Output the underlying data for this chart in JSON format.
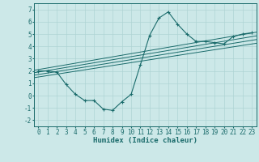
{
  "title": "",
  "xlabel": "Humidex (Indice chaleur)",
  "ylabel": "",
  "bg_color": "#cce8e8",
  "line_color": "#1a6b6b",
  "xlim": [
    -0.5,
    23.5
  ],
  "ylim": [
    -2.5,
    7.5
  ],
  "xticks": [
    0,
    1,
    2,
    3,
    4,
    5,
    6,
    7,
    8,
    9,
    10,
    11,
    12,
    13,
    14,
    15,
    16,
    17,
    18,
    19,
    20,
    21,
    22,
    23
  ],
  "yticks": [
    -2,
    -1,
    0,
    1,
    2,
    3,
    4,
    5,
    6,
    7
  ],
  "main_x": [
    0,
    1,
    2,
    3,
    4,
    5,
    6,
    7,
    8,
    9,
    10,
    11,
    12,
    13,
    14,
    15,
    16,
    17,
    18,
    19,
    20,
    21,
    22,
    23
  ],
  "main_y": [
    2.0,
    2.0,
    1.9,
    0.9,
    0.1,
    -0.4,
    -0.4,
    -1.1,
    -1.2,
    -0.5,
    0.1,
    2.5,
    4.9,
    6.3,
    6.8,
    5.8,
    5.0,
    4.4,
    4.4,
    4.3,
    4.2,
    4.8,
    5.0,
    5.1
  ],
  "trend1_x": [
    -0.5,
    23.5
  ],
  "trend1_y": [
    2.05,
    5.15
  ],
  "trend2_x": [
    -0.5,
    23.5
  ],
  "trend2_y": [
    1.85,
    4.85
  ],
  "trend3_x": [
    -0.5,
    23.5
  ],
  "trend3_y": [
    1.65,
    4.55
  ],
  "trend4_x": [
    -0.5,
    23.5
  ],
  "trend4_y": [
    1.45,
    4.25
  ],
  "grid_color": "#afd4d4",
  "font_color": "#1a6b6b",
  "font_size": 5.5
}
